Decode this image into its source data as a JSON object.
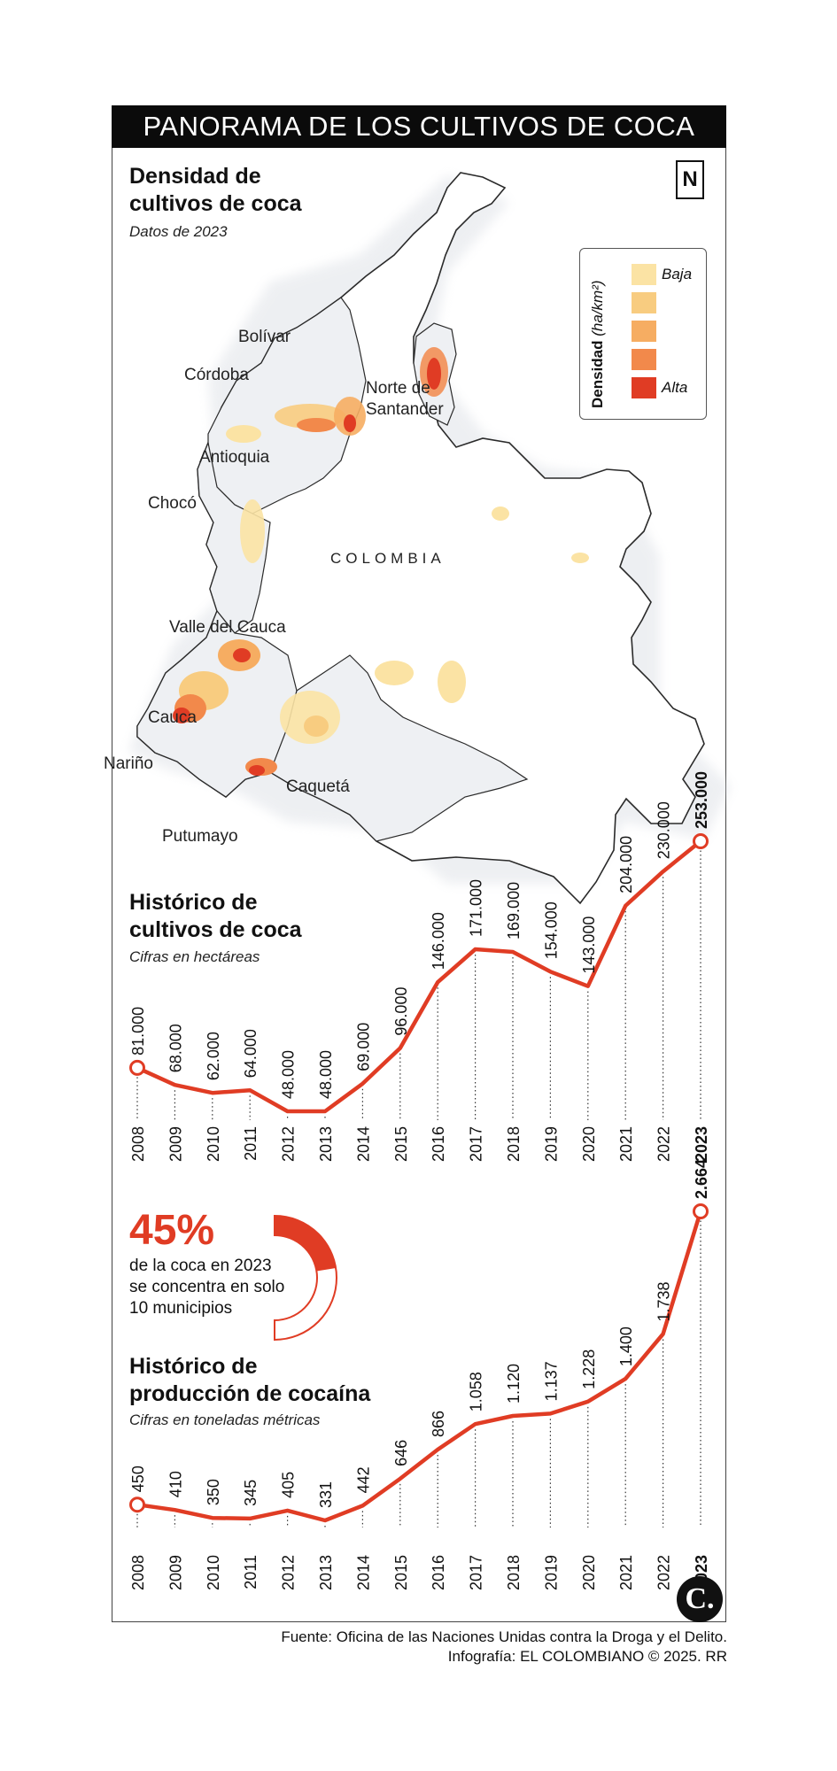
{
  "title": "PANORAMA DE LOS CULTIVOS DE COCA",
  "map": {
    "title_line1": "Densidad de",
    "title_line2": "cultivos de coca",
    "subtitle": "Datos de 2023",
    "country_label": "COLOMBIA",
    "north_symbol": "N",
    "regions": [
      "Bolívar",
      "Córdoba",
      "Antioquia",
      "Norte de",
      "Santander",
      "Chocó",
      "Valle del Cauca",
      "Cauca",
      "Nariño",
      "Caquetá",
      "Putumayo"
    ],
    "legend": {
      "title": "Densidad",
      "unit": "(ha/km²)",
      "low_label": "Baja",
      "high_label": "Alta",
      "colors": [
        "#fbe3a4",
        "#f8cc80",
        "#f6ad62",
        "#f2894b",
        "#e03c24"
      ]
    }
  },
  "stat": {
    "percent": "45%",
    "line1": "de la coca en 2023",
    "line2": "se concentra en solo",
    "line3": "10 municipios",
    "share": 0.45
  },
  "chart_data": [
    {
      "type": "line",
      "title": "Histórico de cultivos de coca",
      "title_line1": "Histórico de",
      "title_line2": "cultivos de coca",
      "subtitle": "Cifras en hectáreas",
      "categories": [
        "2008",
        "2009",
        "2010",
        "2011",
        "2012",
        "2013",
        "2014",
        "2015",
        "2016",
        "2017",
        "2018",
        "2019",
        "2020",
        "2021",
        "2022",
        "2023"
      ],
      "values": [
        81000,
        68000,
        62000,
        64000,
        48000,
        48000,
        69000,
        96000,
        146000,
        171000,
        169000,
        154000,
        143000,
        204000,
        230000,
        253000
      ],
      "labels": [
        "81.000",
        "68.000",
        "62.000",
        "64.000",
        "48.000",
        "48.000",
        "69.000",
        "96.000",
        "146.000",
        "171.000",
        "169.000",
        "154.000",
        "143.000",
        "204.000",
        "230.000",
        "253.000"
      ],
      "color": "#e03c24"
    },
    {
      "type": "line",
      "title": "Histórico de producción de cocaína",
      "title_line1": "Histórico de",
      "title_line2": "producción de cocaína",
      "subtitle": "Cifras en toneladas métricas",
      "categories": [
        "2008",
        "2009",
        "2010",
        "2011",
        "2012",
        "2013",
        "2014",
        "2015",
        "2016",
        "2017",
        "2018",
        "2019",
        "2020",
        "2021",
        "2022",
        "2023"
      ],
      "values": [
        450,
        410,
        350,
        345,
        405,
        331,
        442,
        646,
        866,
        1058,
        1120,
        1137,
        1228,
        1400,
        1738,
        2664
      ],
      "labels": [
        "450",
        "410",
        "350",
        "345",
        "405",
        "331",
        "442",
        "646",
        "866",
        "1.058",
        "1.120",
        "1.137",
        "1.228",
        "1.400",
        "1.738",
        "2.664"
      ],
      "color": "#e03c24"
    }
  ],
  "credits": {
    "source": "Fuente: Oficina de las Naciones Unidas contra la Droga y el Delito.",
    "byline": "Infografía: EL COLOMBIANO © 2025. RR"
  },
  "logo_text": "C."
}
